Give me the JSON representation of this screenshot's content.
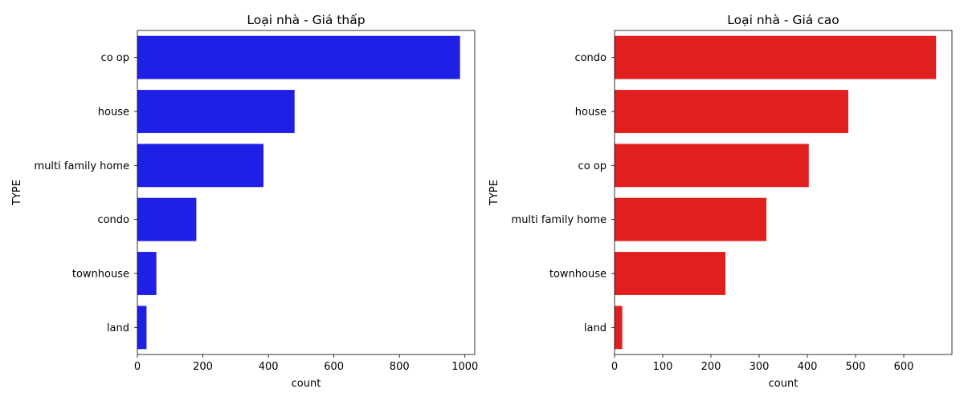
{
  "chart_data": [
    {
      "type": "bar",
      "orientation": "horizontal",
      "title": "Loại nhà - Giá thấp",
      "xlabel": "count",
      "ylabel": "TYPE",
      "categories": [
        "co op",
        "house",
        "multi family home",
        "condo",
        "townhouse",
        "land"
      ],
      "values": [
        985,
        480,
        385,
        180,
        58,
        28
      ],
      "xlim": [
        0,
        1030
      ],
      "xticks": [
        "0",
        "200",
        "400",
        "600",
        "800",
        "1000"
      ],
      "color": "#1f1fe6",
      "grid": false
    },
    {
      "type": "bar",
      "orientation": "horizontal",
      "title": "Loại nhà - Giá cao",
      "xlabel": "count",
      "ylabel": "TYPE",
      "categories": [
        "condo",
        "house",
        "co op",
        "multi family home",
        "townhouse",
        "land"
      ],
      "values": [
        667,
        485,
        403,
        315,
        230,
        16
      ],
      "xlim": [
        0,
        700
      ],
      "xticks": [
        "0",
        "100",
        "200",
        "300",
        "400",
        "500",
        "600"
      ],
      "color": "#e21f1f",
      "grid": false
    }
  ]
}
